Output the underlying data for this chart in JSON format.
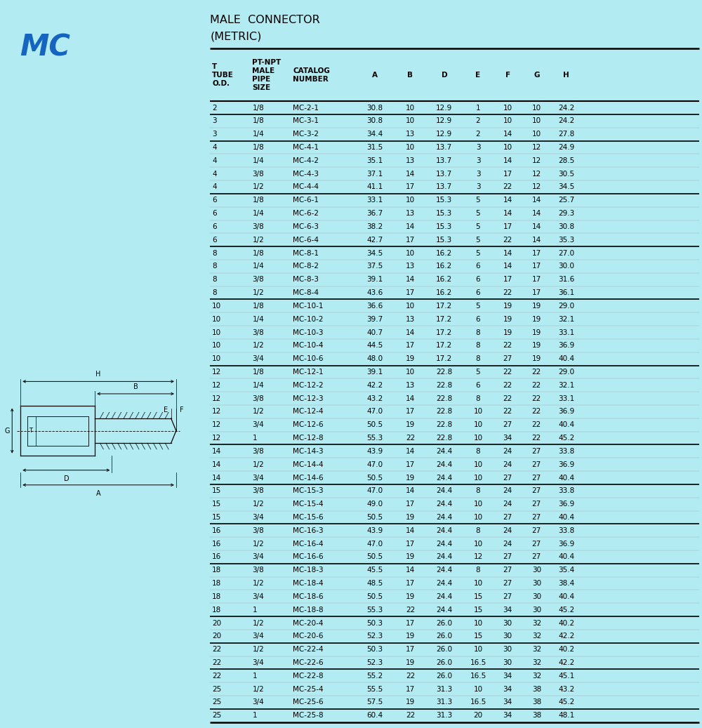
{
  "title_line1": "MALE  CONNECTOR",
  "title_line2": "(METRIC)",
  "bg_color": "#b2ebf2",
  "table_bg": "#ffffff",
  "rows": [
    [
      "2",
      "1/8",
      "MC-2-1",
      "30.8",
      "10",
      "12.9",
      "1",
      "10",
      "10",
      "24.2"
    ],
    [
      "3",
      "1/8",
      "MC-3-1",
      "30.8",
      "10",
      "12.9",
      "2",
      "10",
      "10",
      "24.2"
    ],
    [
      "3",
      "1/4",
      "MC-3-2",
      "34.4",
      "13",
      "12.9",
      "2",
      "14",
      "10",
      "27.8"
    ],
    [
      "4",
      "1/8",
      "MC-4-1",
      "31.5",
      "10",
      "13.7",
      "3",
      "10",
      "12",
      "24.9"
    ],
    [
      "4",
      "1/4",
      "MC-4-2",
      "35.1",
      "13",
      "13.7",
      "3",
      "14",
      "12",
      "28.5"
    ],
    [
      "4",
      "3/8",
      "MC-4-3",
      "37.1",
      "14",
      "13.7",
      "3",
      "17",
      "12",
      "30.5"
    ],
    [
      "4",
      "1/2",
      "MC-4-4",
      "41.1",
      "17",
      "13.7",
      "3",
      "22",
      "12",
      "34.5"
    ],
    [
      "6",
      "1/8",
      "MC-6-1",
      "33.1",
      "10",
      "15.3",
      "5",
      "14",
      "14",
      "25.7"
    ],
    [
      "6",
      "1/4",
      "MC-6-2",
      "36.7",
      "13",
      "15.3",
      "5",
      "14",
      "14",
      "29.3"
    ],
    [
      "6",
      "3/8",
      "MC-6-3",
      "38.2",
      "14",
      "15.3",
      "5",
      "17",
      "14",
      "30.8"
    ],
    [
      "6",
      "1/2",
      "MC-6-4",
      "42.7",
      "17",
      "15.3",
      "5",
      "22",
      "14",
      "35.3"
    ],
    [
      "8",
      "1/8",
      "MC-8-1",
      "34.5",
      "10",
      "16.2",
      "5",
      "14",
      "17",
      "27.0"
    ],
    [
      "8",
      "1/4",
      "MC-8-2",
      "37.5",
      "13",
      "16.2",
      "6",
      "14",
      "17",
      "30.0"
    ],
    [
      "8",
      "3/8",
      "MC-8-3",
      "39.1",
      "14",
      "16.2",
      "6",
      "17",
      "17",
      "31.6"
    ],
    [
      "8",
      "1/2",
      "MC-8-4",
      "43.6",
      "17",
      "16.2",
      "6",
      "22",
      "17",
      "36.1"
    ],
    [
      "10",
      "1/8",
      "MC-10-1",
      "36.6",
      "10",
      "17.2",
      "5",
      "19",
      "19",
      "29.0"
    ],
    [
      "10",
      "1/4",
      "MC-10-2",
      "39.7",
      "13",
      "17.2",
      "6",
      "19",
      "19",
      "32.1"
    ],
    [
      "10",
      "3/8",
      "MC-10-3",
      "40.7",
      "14",
      "17.2",
      "8",
      "19",
      "19",
      "33.1"
    ],
    [
      "10",
      "1/2",
      "MC-10-4",
      "44.5",
      "17",
      "17.2",
      "8",
      "22",
      "19",
      "36.9"
    ],
    [
      "10",
      "3/4",
      "MC-10-6",
      "48.0",
      "19",
      "17.2",
      "8",
      "27",
      "19",
      "40.4"
    ],
    [
      "12",
      "1/8",
      "MC-12-1",
      "39.1",
      "10",
      "22.8",
      "5",
      "22",
      "22",
      "29.0"
    ],
    [
      "12",
      "1/4",
      "MC-12-2",
      "42.2",
      "13",
      "22.8",
      "6",
      "22",
      "22",
      "32.1"
    ],
    [
      "12",
      "3/8",
      "MC-12-3",
      "43.2",
      "14",
      "22.8",
      "8",
      "22",
      "22",
      "33.1"
    ],
    [
      "12",
      "1/2",
      "MC-12-4",
      "47.0",
      "17",
      "22.8",
      "10",
      "22",
      "22",
      "36.9"
    ],
    [
      "12",
      "3/4",
      "MC-12-6",
      "50.5",
      "19",
      "22.8",
      "10",
      "27",
      "22",
      "40.4"
    ],
    [
      "12",
      "1",
      "MC-12-8",
      "55.3",
      "22",
      "22.8",
      "10",
      "34",
      "22",
      "45.2"
    ],
    [
      "14",
      "3/8",
      "MC-14-3",
      "43.9",
      "14",
      "24.4",
      "8",
      "24",
      "27",
      "33.8"
    ],
    [
      "14",
      "1/2",
      "MC-14-4",
      "47.0",
      "17",
      "24.4",
      "10",
      "24",
      "27",
      "36.9"
    ],
    [
      "14",
      "3/4",
      "MC-14-6",
      "50.5",
      "19",
      "24.4",
      "10",
      "27",
      "27",
      "40.4"
    ],
    [
      "15",
      "3/8",
      "MC-15-3",
      "47.0",
      "14",
      "24.4",
      "8",
      "24",
      "27",
      "33.8"
    ],
    [
      "15",
      "1/2",
      "MC-15-4",
      "49.0",
      "17",
      "24.4",
      "10",
      "24",
      "27",
      "36.9"
    ],
    [
      "15",
      "3/4",
      "MC-15-6",
      "50.5",
      "19",
      "24.4",
      "10",
      "27",
      "27",
      "40.4"
    ],
    [
      "16",
      "3/8",
      "MC-16-3",
      "43.9",
      "14",
      "24.4",
      "8",
      "24",
      "27",
      "33.8"
    ],
    [
      "16",
      "1/2",
      "MC-16-4",
      "47.0",
      "17",
      "24.4",
      "10",
      "24",
      "27",
      "36.9"
    ],
    [
      "16",
      "3/4",
      "MC-16-6",
      "50.5",
      "19",
      "24.4",
      "12",
      "27",
      "27",
      "40.4"
    ],
    [
      "18",
      "3/8",
      "MC-18-3",
      "45.5",
      "14",
      "24.4",
      "8",
      "27",
      "30",
      "35.4"
    ],
    [
      "18",
      "1/2",
      "MC-18-4",
      "48.5",
      "17",
      "24.4",
      "10",
      "27",
      "30",
      "38.4"
    ],
    [
      "18",
      "3/4",
      "MC-18-6",
      "50.5",
      "19",
      "24.4",
      "15",
      "27",
      "30",
      "40.4"
    ],
    [
      "18",
      "1",
      "MC-18-8",
      "55.3",
      "22",
      "24.4",
      "15",
      "34",
      "30",
      "45.2"
    ],
    [
      "20",
      "1/2",
      "MC-20-4",
      "50.3",
      "17",
      "26.0",
      "10",
      "30",
      "32",
      "40.2"
    ],
    [
      "20",
      "3/4",
      "MC-20-6",
      "52.3",
      "19",
      "26.0",
      "15",
      "30",
      "32",
      "42.2"
    ],
    [
      "22",
      "1/2",
      "MC-22-4",
      "50.3",
      "17",
      "26.0",
      "10",
      "30",
      "32",
      "40.2"
    ],
    [
      "22",
      "3/4",
      "MC-22-6",
      "52.3",
      "19",
      "26.0",
      "16.5",
      "30",
      "32",
      "42.2"
    ],
    [
      "22",
      "1",
      "MC-22-8",
      "55.2",
      "22",
      "26.0",
      "16.5",
      "34",
      "32",
      "45.1"
    ],
    [
      "25",
      "1/2",
      "MC-25-4",
      "55.5",
      "17",
      "31.3",
      "10",
      "34",
      "38",
      "43.2"
    ],
    [
      "25",
      "3/4",
      "MC-25-6",
      "57.5",
      "19",
      "31.3",
      "16.5",
      "34",
      "38",
      "45.2"
    ],
    [
      "25",
      "1",
      "MC-25-8",
      "60.4",
      "22",
      "31.3",
      "20",
      "34",
      "38",
      "48.1"
    ]
  ],
  "group_separators": [
    0,
    1,
    3,
    7,
    11,
    15,
    20,
    26,
    29,
    32,
    35,
    39,
    41,
    43,
    46
  ],
  "mc_label_color": "#1565c0",
  "title_color": "#000000"
}
